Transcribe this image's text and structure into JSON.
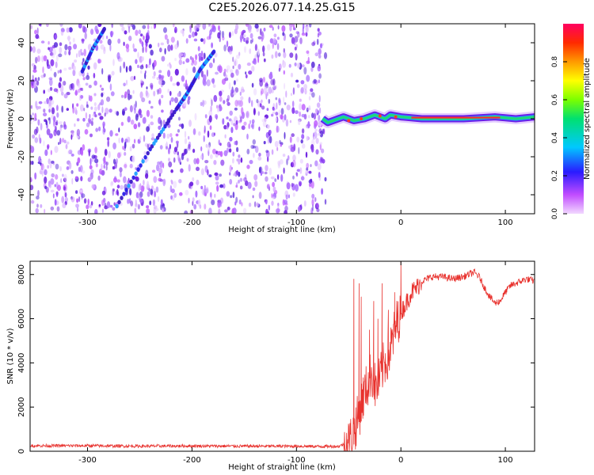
{
  "figure": {
    "title": "C2E5.2026.077.14.25.G15"
  },
  "colors": {
    "snr_line": "#e8322e",
    "spectrogram_noise": "#7a2be8",
    "spectrogram_peak": "#ff2a2a"
  },
  "chart_data": [
    {
      "type": "heatmap",
      "title": "C2E5.2026.077.14.25.G15",
      "xlabel": "Height of straight line (km)",
      "ylabel": "Frequency (Hz)",
      "xlim": [
        -355,
        128
      ],
      "ylim": [
        -50,
        50
      ],
      "xticks": [
        -300,
        -200,
        -100,
        0,
        100
      ],
      "yticks": [
        -40,
        -20,
        0,
        20,
        40
      ],
      "data_x_extent": [
        -355,
        -72
      ],
      "colorbar": {
        "label": "Normalized spectral amplitude",
        "range": [
          0,
          1
        ],
        "ticks": [
          0.0,
          0.2,
          0.4,
          0.6,
          0.8
        ],
        "colormap": "rainbow (magenta-blue-cyan-green-yellow-red)"
      },
      "ridge_lines": [
        {
          "name": "",
          "points": [
            [
              -272,
              -46
            ],
            [
              -240,
              -16
            ],
            [
              -215,
              5
            ],
            [
              -205,
              13
            ],
            [
              -192,
              26
            ],
            [
              -178,
              36
            ]
          ]
        },
        {
          "name": "",
          "points": [
            [
              -305,
              25
            ],
            [
              -295,
              37
            ],
            [
              -283,
              48
            ]
          ]
        }
      ],
      "trace_line": {
        "points": [
          [
            -75,
            0
          ],
          [
            -70,
            -2
          ],
          [
            -60,
            0
          ],
          [
            -55,
            1
          ],
          [
            -45,
            -1
          ],
          [
            -35,
            0
          ],
          [
            -25,
            2
          ],
          [
            -15,
            0
          ],
          [
            -10,
            2
          ],
          [
            0,
            1
          ],
          [
            20,
            0
          ],
          [
            60,
            0
          ],
          [
            90,
            1
          ],
          [
            110,
            0
          ],
          [
            128,
            1
          ]
        ],
        "peak_amplitude": 1.0
      }
    },
    {
      "type": "line",
      "xlabel": "Height of straight line (km)",
      "ylabel": "SNR (10 * v/v)",
      "xlim": [
        -355,
        128
      ],
      "ylim": [
        0,
        8600
      ],
      "xticks": [
        -300,
        -200,
        -100,
        0,
        100
      ],
      "yticks": [
        0,
        2000,
        4000,
        6000,
        8000
      ],
      "series": [
        {
          "name": "",
          "x": [
            -355,
            -300,
            -250,
            -200,
            -150,
            -100,
            -80,
            -60,
            -50,
            -45,
            -40,
            -36,
            -32,
            -28,
            -24,
            -20,
            -16,
            -12,
            -8,
            -4,
            0,
            5,
            10,
            15,
            20,
            25,
            30,
            40,
            50,
            60,
            70,
            75,
            80,
            85,
            90,
            95,
            100,
            105,
            110,
            115,
            120,
            128
          ],
          "y": [
            250,
            250,
            230,
            240,
            230,
            230,
            220,
            220,
            400,
            900,
            1700,
            2500,
            3000,
            3600,
            2800,
            3300,
            4000,
            4300,
            5000,
            5800,
            6300,
            6700,
            7200,
            7400,
            7700,
            7800,
            7900,
            7900,
            7800,
            7900,
            8100,
            7900,
            7400,
            7000,
            6700,
            6800,
            7200,
            7500,
            7600,
            7700,
            7800,
            7700
          ],
          "spikes": [
            [
              -45,
              7800
            ],
            [
              -40,
              7600
            ],
            [
              -38,
              7000
            ],
            [
              -30,
              5500
            ],
            [
              -26,
              6800
            ],
            [
              -22,
              6000
            ],
            [
              -18,
              7600
            ],
            [
              -12,
              6400
            ],
            [
              -6,
              7200
            ],
            [
              0,
              8600
            ]
          ]
        }
      ]
    }
  ]
}
